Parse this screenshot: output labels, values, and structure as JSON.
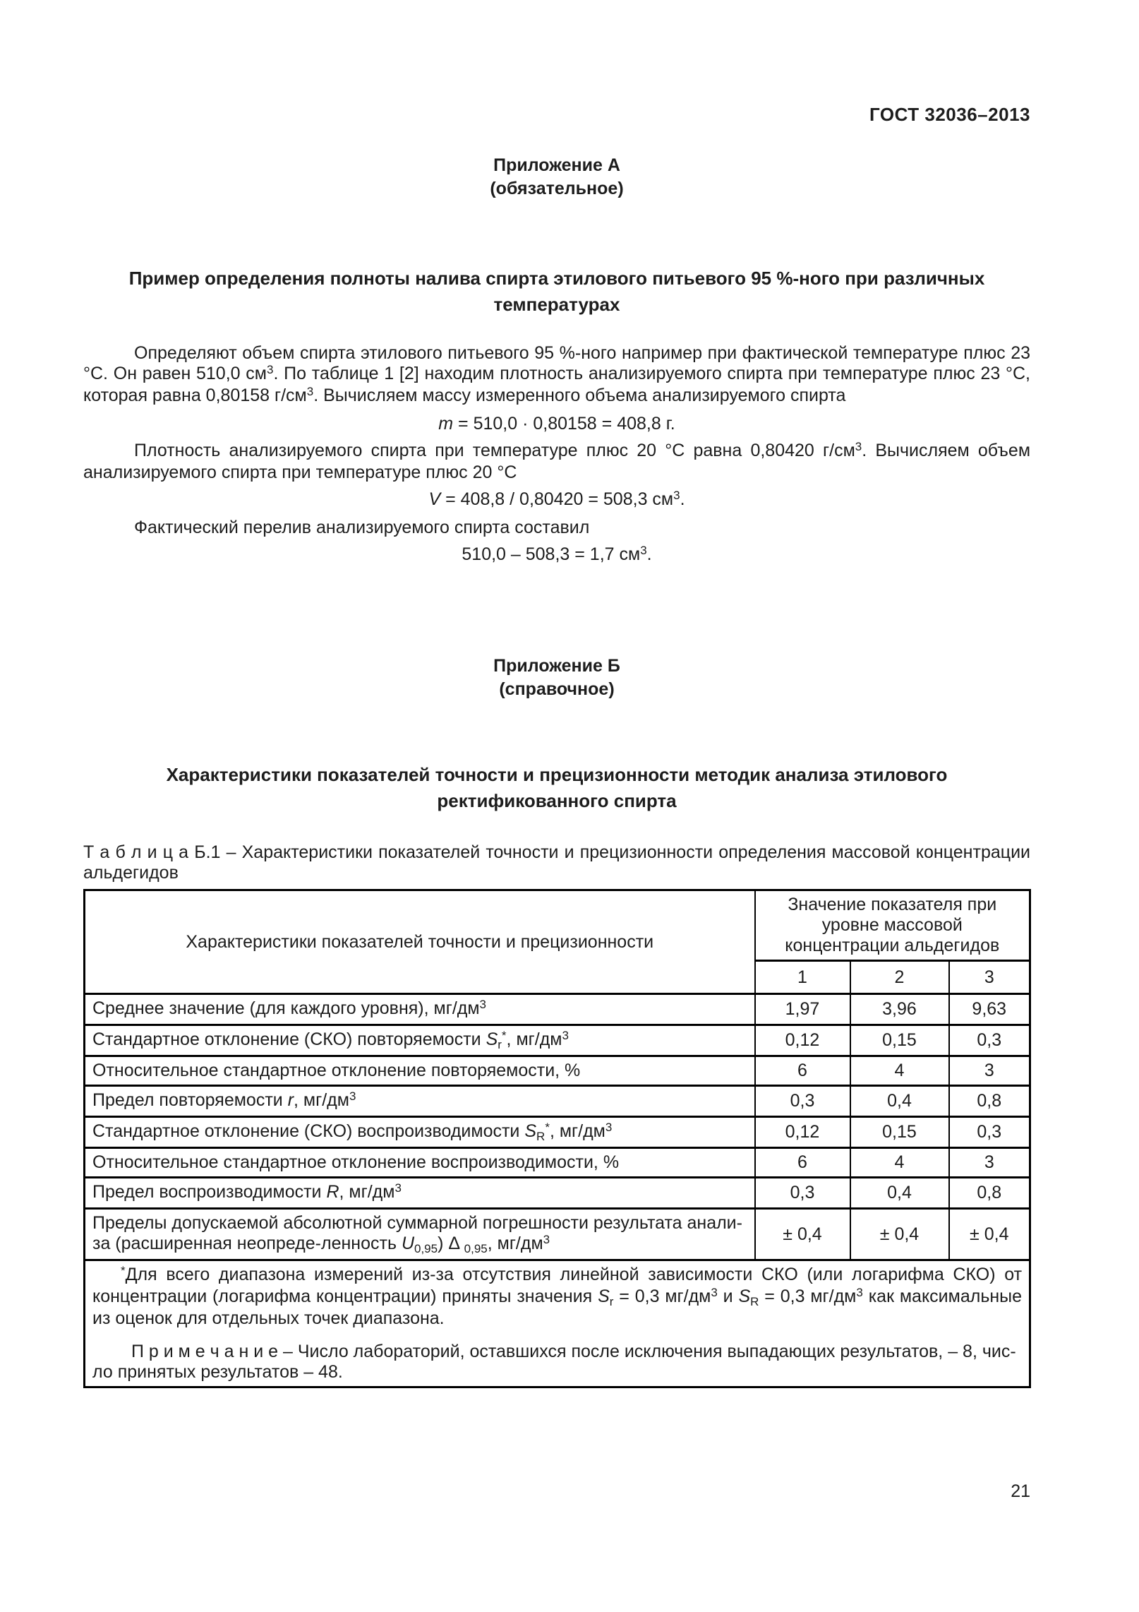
{
  "page": {
    "doc_code": "ГОСТ 32036–2013",
    "page_number": "21"
  },
  "appendix_a": {
    "label": "Приложение А",
    "kind": "(обязательное)",
    "title": "Пример определения полноты налива спирта этилового питьевого 95 %-ного при различных температурах",
    "para1": [
      {
        "t": "Определяют объем спирта этилового питьевого 95 %-ного например при фактической температуре плюс 23 °С. Он равен 510,0 см"
      },
      {
        "t": "3",
        "sup": true
      },
      {
        "t": ". По таблице 1 [2] находим плотность анализируемого спирта при температуре плюс 23 °С, которая равна 0,80158 г/см"
      },
      {
        "t": "3",
        "sup": true
      },
      {
        "t": ". Вычисляем массу измеренного объема анализируемого спирта"
      }
    ],
    "formula_mass": [
      {
        "t": "m",
        "i": true
      },
      {
        "t": " = 510,0 · 0,80158 = 408,8 г."
      }
    ],
    "para2": [
      {
        "t": "Плотность анализируемого спирта при температуре плюс 20 °С равна 0,80420 г/см"
      },
      {
        "t": "3",
        "sup": true
      },
      {
        "t": ". Вычисляем объем анализируемого спирта при температуре плюс 20 °С"
      }
    ],
    "formula_volume": [
      {
        "t": "V",
        "i": true
      },
      {
        "t": " = 408,8 / 0,80420 = 508,3 см"
      },
      {
        "t": "3",
        "sup": true
      },
      {
        "t": "."
      }
    ],
    "para3": "Фактический перелив анализируемого спирта составил",
    "formula_overfill": [
      {
        "t": "510,0 – 508,3 = 1,7 см"
      },
      {
        "t": "3",
        "sup": true
      },
      {
        "t": "."
      }
    ]
  },
  "appendix_b": {
    "label": "Приложение Б",
    "kind": "(справочное)",
    "title": "Характеристики показателей точности и прецизионности методик анализа этилового ректификованного спирта",
    "table_caption": "Т а б л и ц а  Б.1 – Характеристики показателей точности и прецизионности определения массовой концентрации альдегидов",
    "table": {
      "header_left": "Характеристики показателей точности и прецизионности",
      "header_right": "Значение показателя при уровне массовой концентрации альдегидов",
      "level_columns": [
        "1",
        "2",
        "3"
      ],
      "rows": [
        {
          "label": [
            {
              "t": "Среднее значение (для каждого уровня), мг/дм"
            },
            {
              "t": "3",
              "sup": true
            }
          ],
          "values": [
            "1,97",
            "3,96",
            "9,63"
          ]
        },
        {
          "label": [
            {
              "t": "Стандартное отклонение (СКО) повторяемости "
            },
            {
              "t": "S",
              "i": true
            },
            {
              "t": "r",
              "sub": true
            },
            {
              "t": "*",
              "sup": true
            },
            {
              "t": ", мг/дм"
            },
            {
              "t": "3",
              "sup": true
            }
          ],
          "values": [
            "0,12",
            "0,15",
            "0,3"
          ]
        },
        {
          "label": [
            {
              "t": "Относительное стандартное отклонение повторяемости, %"
            }
          ],
          "values": [
            "6",
            "4",
            "3"
          ]
        },
        {
          "label": [
            {
              "t": "Предел повторяемости "
            },
            {
              "t": "r",
              "i": true
            },
            {
              "t": ", мг/дм"
            },
            {
              "t": "3",
              "sup": true
            }
          ],
          "values": [
            "0,3",
            "0,4",
            "0,8"
          ]
        },
        {
          "label": [
            {
              "t": "Стандартное отклонение (СКО) воспроизводимости "
            },
            {
              "t": "S",
              "i": true
            },
            {
              "t": "R",
              "sub": true
            },
            {
              "t": "*",
              "sup": true
            },
            {
              "t": ", мг/дм"
            },
            {
              "t": "3",
              "sup": true
            }
          ],
          "values": [
            "0,12",
            "0,15",
            "0,3"
          ]
        },
        {
          "label": [
            {
              "t": "Относительное стандартное отклонение воспроизводимости, %"
            }
          ],
          "values": [
            "6",
            "4",
            "3"
          ]
        },
        {
          "label": [
            {
              "t": "Предел воспроизводимости "
            },
            {
              "t": "R",
              "i": true
            },
            {
              "t": ", мг/дм"
            },
            {
              "t": "3",
              "sup": true
            }
          ],
          "values": [
            "0,3",
            "0,4",
            "0,8"
          ]
        },
        {
          "label": [
            {
              "t": "Пределы допускаемой абсолютной суммарной погрешности результата анали-"
            },
            {
              "br": true
            },
            {
              "t": "за (расширенная неопреде-ленность "
            },
            {
              "t": "U",
              "i": true
            },
            {
              "t": "0,95",
              "sub": true
            },
            {
              "t": ") Δ "
            },
            {
              "t": "0,95",
              "sub": true
            },
            {
              "t": ", мг/дм"
            },
            {
              "t": "3",
              "sup": true
            }
          ],
          "values": [
            "± 0,4",
            "± 0,4",
            "± 0,4"
          ]
        }
      ],
      "footnote": [
        {
          "t": "*",
          "sup": true
        },
        {
          "t": "Для всего диапазона измерений из-за отсутствия линейной зависимости СКО (или логарифма СКО) от концентрации (логарифма концентрации) приняты значения "
        },
        {
          "t": "S",
          "i": true
        },
        {
          "t": "r",
          "sub": true
        },
        {
          "t": " = 0,3 мг/дм"
        },
        {
          "t": "3",
          "sup": true
        },
        {
          "t": " и "
        },
        {
          "t": "S",
          "i": true
        },
        {
          "t": "R",
          "sub": true
        },
        {
          "t": " = 0,3 мг/дм"
        },
        {
          "t": "3",
          "sup": true
        },
        {
          "t": " как максимальные из оценок для отдельных точек диапазона."
        }
      ],
      "note": [
        {
          "t": "П р и м е ч а н и е  – Число лабораторий, оставшихся после исключения выпадающих результатов, – 8, чис-"
        },
        {
          "br": true
        },
        {
          "t": "ло принятых результатов – 48."
        }
      ]
    }
  }
}
